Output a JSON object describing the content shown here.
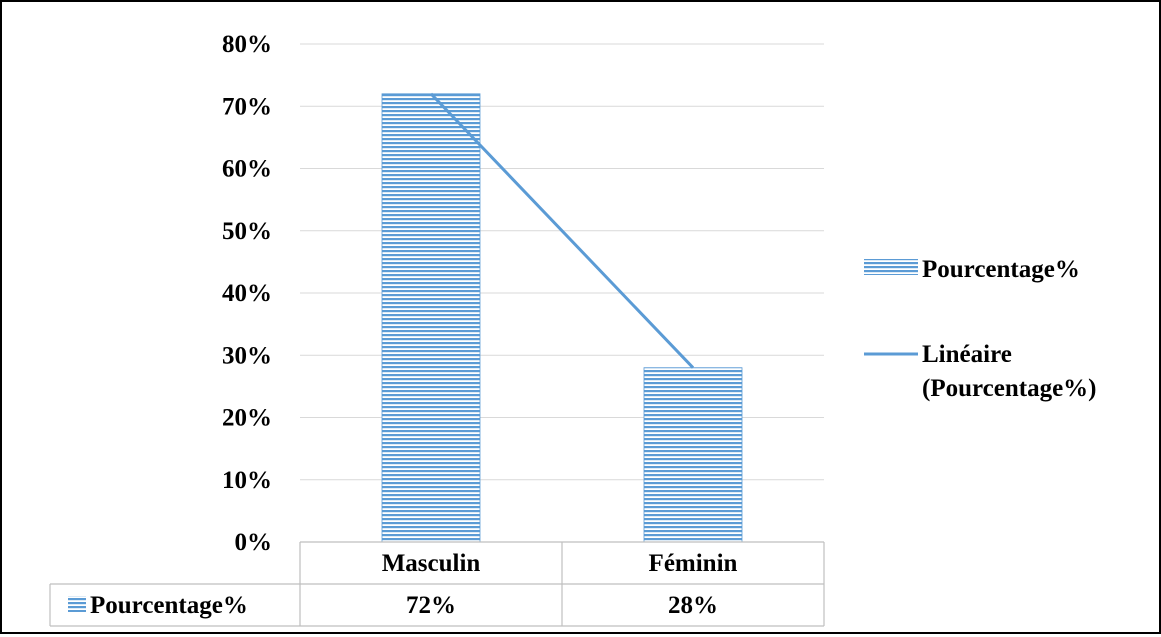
{
  "chart_data": {
    "type": "bar",
    "categories": [
      "Masculin",
      "Féminin"
    ],
    "series": [
      {
        "name": "Pourcentage%",
        "values": [
          72,
          28
        ],
        "value_labels": [
          "72%",
          "28%"
        ]
      }
    ],
    "trendline": {
      "name": "Linéaire (Pourcentage%)",
      "type": "linear",
      "series": "Pourcentage%"
    },
    "ylim": [
      0,
      80
    ],
    "yticks": [
      0,
      10,
      20,
      30,
      40,
      50,
      60,
      70,
      80
    ],
    "ytick_labels": [
      "0%",
      "10%",
      "20%",
      "30%",
      "40%",
      "50%",
      "60%",
      "70%",
      "80%"
    ],
    "grid": true,
    "legend": {
      "position": "right",
      "entries": [
        "Pourcentage%",
        "Linéaire (Pourcentage%)"
      ]
    },
    "data_table": {
      "row_label": "Pourcentage%",
      "values": [
        "72%",
        "28%"
      ]
    },
    "colors": {
      "bar": "#5b9bd5",
      "bar_stripe": "#ffffff",
      "trendline": "#5b9bd5",
      "grid": "#d9d9d9"
    }
  }
}
